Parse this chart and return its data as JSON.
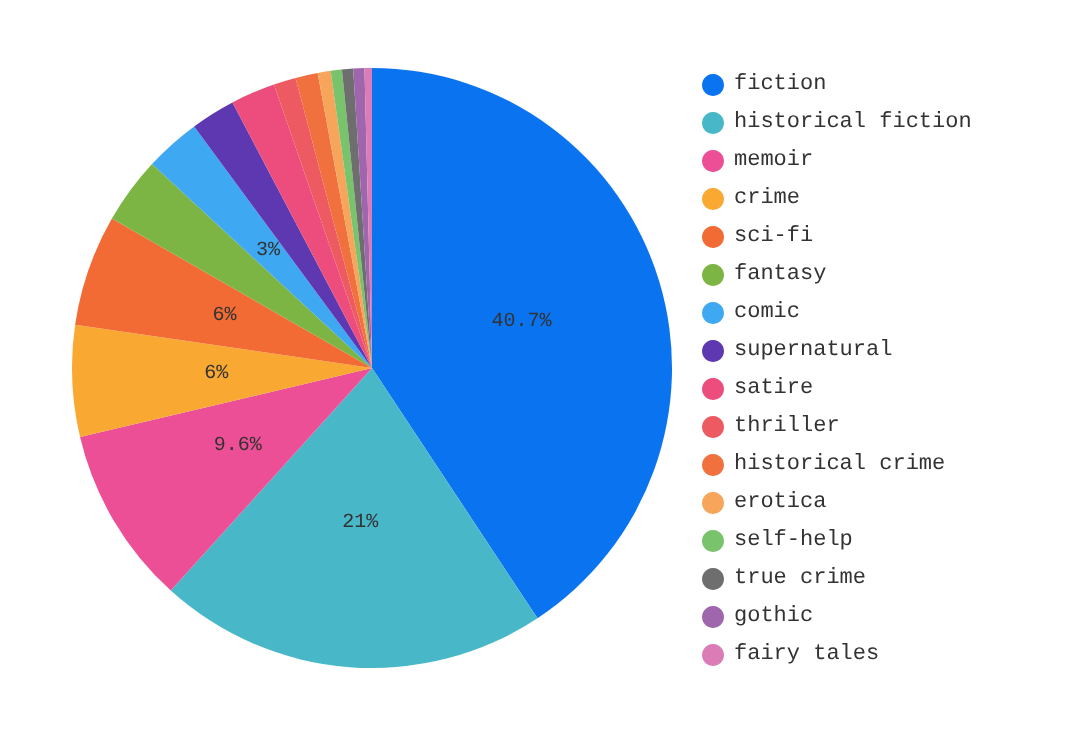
{
  "chart_data": {
    "type": "pie",
    "categories": [
      "fiction",
      "historical fiction",
      "memoir",
      "crime",
      "sci-fi",
      "fantasy",
      "comic",
      "supernatural",
      "satire",
      "thriller",
      "historical crime",
      "erotica",
      "self-help",
      "true crime",
      "gothic",
      "fairy tales"
    ],
    "values": [
      40.7,
      21,
      9.6,
      6,
      6,
      3.6,
      3,
      2.4,
      2.4,
      1.2,
      1.2,
      0.7,
      0.6,
      0.6,
      0.6,
      0.4
    ],
    "value_labels": [
      "40.7%",
      "21%",
      "9.6%",
      "6%",
      "6%",
      null,
      "3%",
      null,
      null,
      null,
      null,
      null,
      null,
      null,
      null,
      null
    ],
    "colors": [
      "#0a73f0",
      "#48b8c9",
      "#ec4f95",
      "#f9a932",
      "#f26b35",
      "#7db544",
      "#3ea8f2",
      "#5e38b0",
      "#ec4d7c",
      "#ee5a62",
      "#f0703e",
      "#f7a55a",
      "#79c36c",
      "#6e6e6e",
      "#9f66ae",
      "#db7cb6"
    ],
    "legend": "right"
  }
}
